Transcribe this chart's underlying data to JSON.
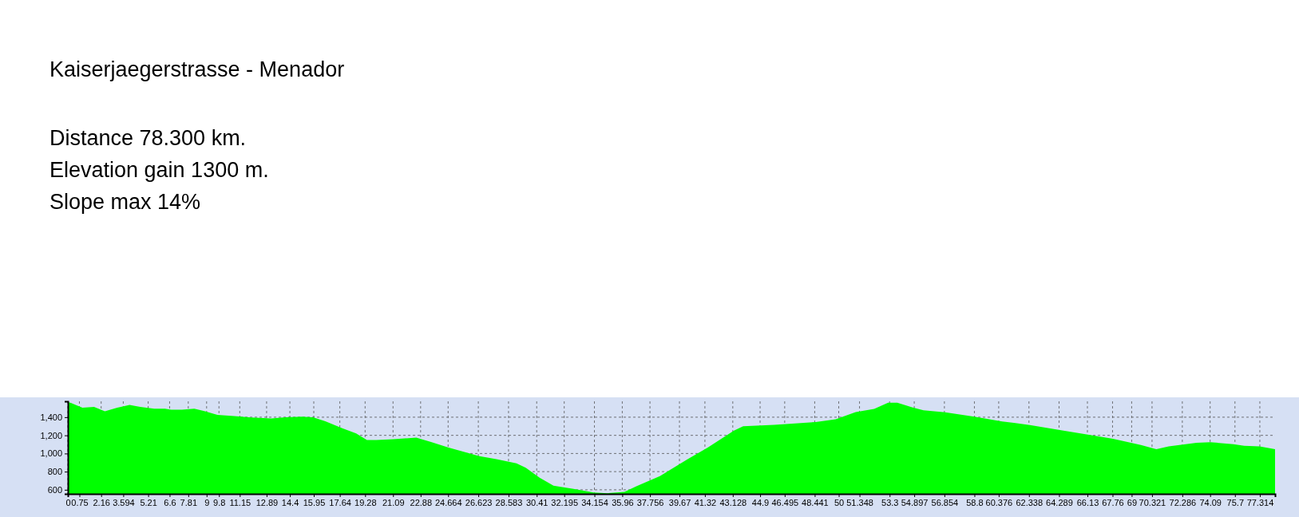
{
  "chart_data": {
    "type": "area",
    "title": "Kaiserjaegerstrasse - Menador",
    "annotations": [
      "Distance 78.300 km.",
      "Elevation gain 1300 m.",
      "Slope max 14%"
    ],
    "color": "#00ff00",
    "grid": true,
    "x": [
      0,
      0.2,
      0.95,
      1.7,
      2.4,
      3.2,
      4.0,
      4.7,
      5.6,
      6.3,
      6.7,
      7.4,
      8.2,
      8.9,
      9.7,
      10.8,
      11.9,
      13.2,
      14.1,
      15.2,
      15.9,
      16.7,
      17.8,
      18.7,
      19.4,
      20.0,
      21.1,
      22.6,
      23.56,
      24.7,
      26.7,
      27.8,
      29.1,
      29.7,
      30.6,
      31.5,
      32.8,
      34.1,
      35.0,
      36.1,
      36.9,
      38.4,
      40.2,
      41.5,
      43.2,
      43.8,
      45.8,
      48.5,
      49.8,
      51.1,
      52.3,
      53.2,
      53.8,
      54.8,
      55.5,
      56.9,
      58.8,
      60.6,
      62.4,
      64.5,
      66.4,
      67.8,
      69.6,
      70.6,
      71.4,
      73.2,
      74.1,
      75.6,
      76.3,
      77.3,
      78.3
    ],
    "values": [
      1566,
      1557,
      1504,
      1513,
      1466,
      1504,
      1535,
      1513,
      1494,
      1494,
      1482,
      1482,
      1494,
      1466,
      1425,
      1413,
      1397,
      1387,
      1400,
      1406,
      1400,
      1356,
      1278,
      1221,
      1149,
      1149,
      1158,
      1174,
      1127,
      1064,
      970,
      938,
      891,
      844,
      734,
      646,
      609,
      571,
      562,
      577,
      640,
      750,
      938,
      1064,
      1252,
      1300,
      1315,
      1347,
      1378,
      1457,
      1492,
      1559,
      1559,
      1507,
      1477,
      1455,
      1406,
      1354,
      1314,
      1253,
      1201,
      1161,
      1093,
      1048,
      1078,
      1118,
      1124,
      1103,
      1084,
      1078,
      1048
    ],
    "xlim": [
      0,
      78.3
    ],
    "ylim": [
      555,
      1575
    ],
    "xticks": [
      0,
      0.75,
      2.16,
      3.594,
      5.21,
      6.6,
      7.81,
      9,
      9.8,
      11.15,
      12.89,
      14.4,
      15.95,
      17.64,
      19.28,
      21.09,
      22.88,
      24.664,
      26.623,
      28.583,
      30.41,
      32.195,
      34.154,
      35.96,
      37.756,
      39.67,
      41.32,
      43.128,
      44.9,
      46.495,
      48.441,
      50,
      51.348,
      53.3,
      54.897,
      56.854,
      58.8,
      60.376,
      62.338,
      64.289,
      66.13,
      67.76,
      69,
      70.321,
      72.286,
      74.09,
      75.7,
      77.314
    ],
    "yticks": [
      600,
      800,
      {
        "value": 1000,
        "label": "1,000"
      },
      {
        "value": 1200,
        "label": "1,200"
      },
      {
        "value": 1400,
        "label": "1,400"
      }
    ]
  }
}
